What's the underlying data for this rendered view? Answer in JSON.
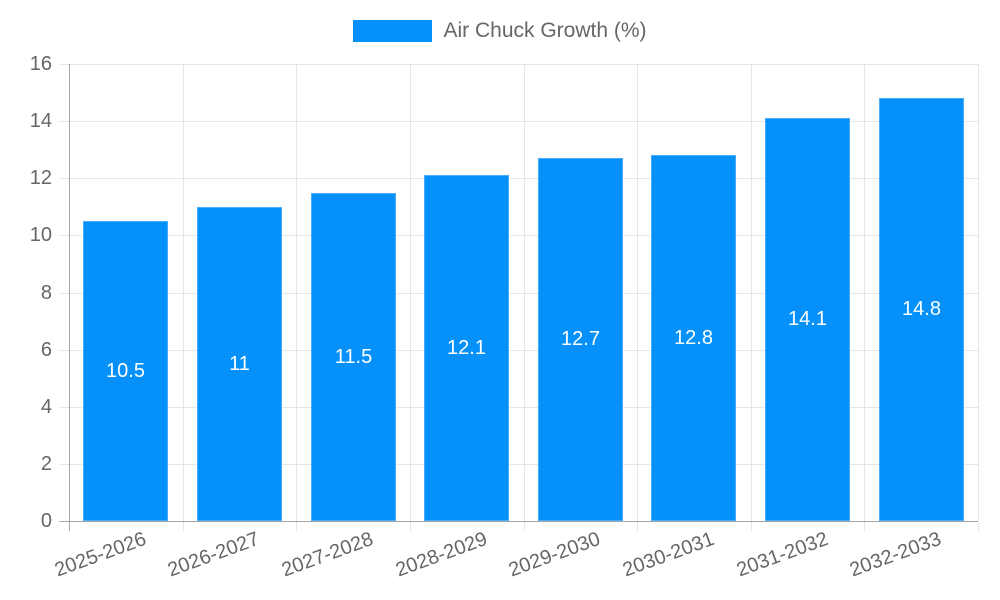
{
  "legend": {
    "label": "Air Chuck Growth (%)"
  },
  "colors": {
    "bar_fill": "#0591f9",
    "bar_edge": "#47acf9",
    "grid": "#e6e6e6",
    "axis": "#a6a6a6",
    "tick_text": "#666666",
    "legend_text": "#666666",
    "value_label_text": "#ffffff",
    "background": "#ffffff"
  },
  "chart_data": {
    "type": "bar",
    "title": "",
    "series_name": "Air Chuck Growth (%)",
    "categories": [
      "2025-2026",
      "2026-2027",
      "2027-2028",
      "2028-2029",
      "2029-2030",
      "2030-2031",
      "2031-2032",
      "2032-2033"
    ],
    "values": [
      10.5,
      11,
      11.5,
      12.1,
      12.7,
      12.8,
      14.1,
      14.8
    ],
    "value_labels": [
      "10.5",
      "11",
      "11.5",
      "12.1",
      "12.7",
      "12.8",
      "14.1",
      "14.8"
    ],
    "xlabel": "",
    "ylabel": "",
    "ylim": [
      0,
      16
    ],
    "yticks": [
      0,
      2,
      4,
      6,
      8,
      10,
      12,
      14,
      16
    ],
    "grid": true,
    "legend_position": "top-center",
    "x_tick_label_rotation_deg": -20,
    "bar_value_label_position": "center"
  }
}
